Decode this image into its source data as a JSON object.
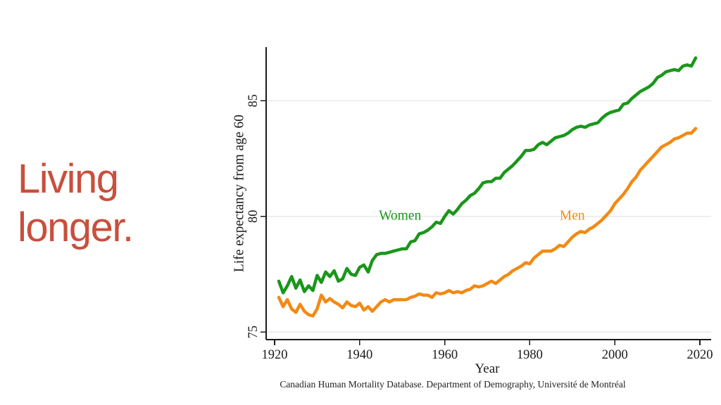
{
  "slide": {
    "heading": {
      "line1": "Living",
      "line2": "longer.",
      "color": "#C8503C"
    }
  },
  "chart_data": {
    "type": "line",
    "title": "",
    "xlabel": "Year",
    "ylabel": "Life expectancy from age 60",
    "source_note": "Canadian Human Mortality Database. Department of Demography, Université de Montréal",
    "x_ticks": [
      1920,
      1940,
      1960,
      1980,
      2000,
      2020
    ],
    "y_ticks": [
      75,
      80,
      85
    ],
    "xlim": [
      1918,
      2022
    ],
    "ylim": [
      74.6,
      87.2
    ],
    "grid": "horizontal-light",
    "legend": "inline-labels",
    "axis_color": "#1a1a1a",
    "grid_color": "#e9e9e9",
    "x": [
      1921,
      1922,
      1923,
      1924,
      1925,
      1926,
      1927,
      1928,
      1929,
      1930,
      1931,
      1932,
      1933,
      1934,
      1935,
      1936,
      1937,
      1938,
      1939,
      1940,
      1941,
      1942,
      1943,
      1944,
      1945,
      1946,
      1947,
      1948,
      1949,
      1950,
      1951,
      1952,
      1953,
      1954,
      1955,
      1956,
      1957,
      1958,
      1959,
      1960,
      1961,
      1962,
      1963,
      1964,
      1965,
      1966,
      1967,
      1968,
      1969,
      1970,
      1971,
      1972,
      1973,
      1974,
      1975,
      1976,
      1977,
      1978,
      1979,
      1980,
      1981,
      1982,
      1983,
      1984,
      1985,
      1986,
      1987,
      1988,
      1989,
      1990,
      1991,
      1992,
      1993,
      1994,
      1995,
      1996,
      1997,
      1998,
      1999,
      2000,
      2001,
      2002,
      2003,
      2004,
      2005,
      2006,
      2007,
      2008,
      2009,
      2010,
      2011,
      2012,
      2013,
      2014,
      2015,
      2016,
      2017,
      2018,
      2019
    ],
    "series": [
      {
        "name": "Women",
        "color": "#1A961A",
        "label_at": {
          "year": 1949.5,
          "value": 80.0
        },
        "values": [
          77.2,
          76.7,
          77.0,
          77.4,
          76.9,
          77.25,
          76.75,
          77.0,
          76.8,
          77.45,
          77.15,
          77.6,
          77.4,
          77.65,
          77.2,
          77.3,
          77.75,
          77.5,
          77.45,
          77.8,
          77.9,
          77.6,
          78.1,
          78.35,
          78.4,
          78.4,
          78.45,
          78.5,
          78.55,
          78.6,
          78.6,
          78.9,
          78.95,
          79.25,
          79.3,
          79.4,
          79.55,
          79.75,
          79.7,
          80.0,
          80.25,
          80.1,
          80.3,
          80.55,
          80.7,
          80.9,
          81.0,
          81.2,
          81.45,
          81.5,
          81.5,
          81.65,
          81.65,
          81.9,
          82.05,
          82.2,
          82.4,
          82.6,
          82.85,
          82.85,
          82.9,
          83.1,
          83.2,
          83.1,
          83.25,
          83.4,
          83.45,
          83.5,
          83.6,
          83.75,
          83.85,
          83.9,
          83.85,
          83.95,
          84.0,
          84.05,
          84.25,
          84.4,
          84.5,
          84.55,
          84.6,
          84.85,
          84.9,
          85.1,
          85.25,
          85.4,
          85.5,
          85.6,
          85.75,
          86.0,
          86.1,
          86.25,
          86.3,
          86.35,
          86.3,
          86.5,
          86.55,
          86.5,
          86.85
        ]
      },
      {
        "name": "Men",
        "color": "#F28A15",
        "label_at": {
          "year": 1990,
          "value": 80.0
        },
        "values": [
          76.5,
          76.1,
          76.4,
          76.0,
          75.85,
          76.2,
          75.9,
          75.75,
          75.7,
          76.0,
          76.6,
          76.3,
          76.45,
          76.3,
          76.2,
          76.05,
          76.3,
          76.15,
          76.1,
          76.25,
          75.95,
          76.1,
          75.9,
          76.1,
          76.3,
          76.4,
          76.3,
          76.4,
          76.4,
          76.4,
          76.4,
          76.5,
          76.55,
          76.65,
          76.6,
          76.6,
          76.5,
          76.7,
          76.65,
          76.7,
          76.8,
          76.7,
          76.75,
          76.7,
          76.8,
          76.85,
          77.0,
          76.95,
          77.0,
          77.1,
          77.2,
          77.1,
          77.25,
          77.4,
          77.5,
          77.65,
          77.75,
          77.85,
          78.0,
          77.95,
          78.2,
          78.35,
          78.5,
          78.5,
          78.5,
          78.6,
          78.75,
          78.7,
          78.9,
          79.1,
          79.25,
          79.35,
          79.3,
          79.45,
          79.55,
          79.7,
          79.85,
          80.05,
          80.25,
          80.55,
          80.75,
          80.95,
          81.2,
          81.5,
          81.7,
          82.0,
          82.2,
          82.4,
          82.6,
          82.8,
          83.0,
          83.1,
          83.2,
          83.35,
          83.4,
          83.5,
          83.6,
          83.6,
          83.8
        ]
      }
    ]
  }
}
